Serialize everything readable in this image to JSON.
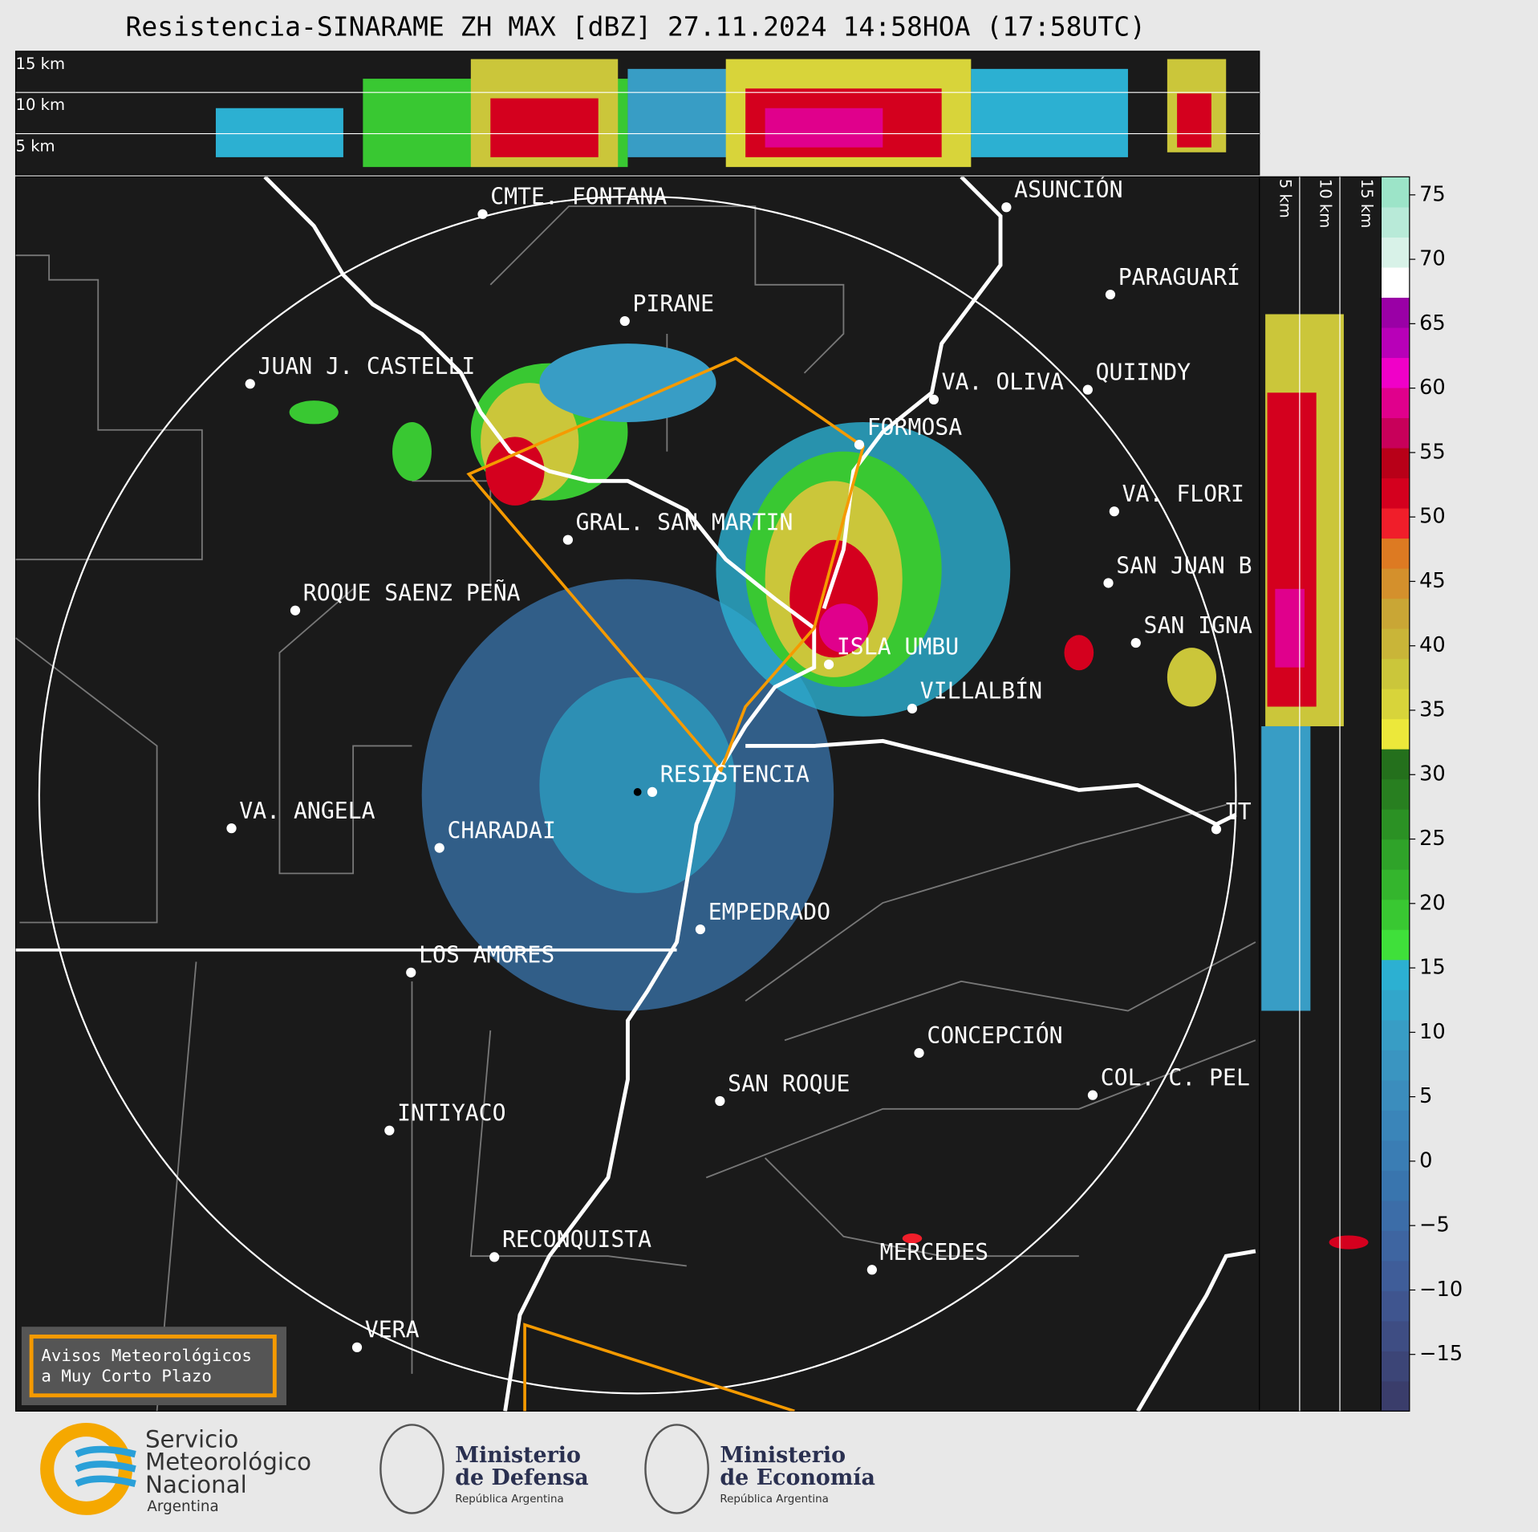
{
  "header": {
    "title": "Resistencia-SINARAME ZH MAX [dBZ] 27.11.2024 14:58HOA (17:58UTC)"
  },
  "top_panel": {
    "height_labels": [
      "15 km",
      "10 km",
      "5 km"
    ]
  },
  "side_panel": {
    "height_labels": [
      "5 km",
      "10 km",
      "15 km"
    ]
  },
  "map": {
    "places": [
      "CMTE. FONTANA",
      "PIRANE",
      "JUAN J. CASTELLI",
      "VA. OLIVA",
      "QUIINDY",
      "ASUNCIÓN",
      "PARAGUARÍ",
      "FORMOSA",
      "VA. FLORI",
      "GRAL. SAN MARTIN",
      "SAN JUAN B",
      "ROQUE SAENZ PEÑA",
      "SAN IGNA",
      "ISLA UMBU",
      "VILLALBÍN",
      "RESISTENCIA",
      "VA. ANGELA",
      "CHARADAI",
      "IT",
      "EMPEDRADO",
      "LOS AMORES",
      "CONCEPCIÓN",
      "COL. C. PEL",
      "SAN ROQUE",
      "INTIYACO",
      "RECONQUISTA",
      "MERCEDES",
      "VERA"
    ]
  },
  "colorbar": {
    "lim": [
      -19.4,
      76.4
    ],
    "ticks": [
      75,
      70,
      65,
      60,
      55,
      50,
      45,
      40,
      35,
      30,
      25,
      20,
      15,
      10,
      5,
      0,
      {
        "value": -5,
        "label": "−5"
      },
      {
        "value": -10,
        "label": "−10"
      },
      {
        "value": -15,
        "label": "−15"
      }
    ],
    "colors": [
      "#3a3d6b",
      "#3c4577",
      "#3e4d83",
      "#3f558f",
      "#3f5d99",
      "#3e65a1",
      "#3c6da8",
      "#3975ae",
      "#3a7db4",
      "#3a85b9",
      "#3b8dbd",
      "#3a95c1",
      "#389dc5",
      "#32a6cb",
      "#2cb0d2",
      "#3fe03a",
      "#39c832",
      "#34b52d",
      "#2fa329",
      "#2b9124",
      "#287f20",
      "#24701c",
      "#ece83a",
      "#d8d43a",
      "#cbc63a",
      "#c9b538",
      "#c9a635",
      "#d4902c",
      "#dd7a22",
      "#f01e2a",
      "#d4001e",
      "#b80018",
      "#c8005a",
      "#e0008c",
      "#f000c8",
      "#b800b8",
      "#9a00a6",
      "#ffffff",
      "#d8f2e8",
      "#b8ead8",
      "#9ce4c8"
    ]
  },
  "warning_box": {
    "lines": [
      "Avisos Meteorológicos",
      "a Muy Corto Plazo"
    ]
  },
  "footer": {
    "smn": [
      "Servicio",
      "Meteorológico",
      "Nacional",
      "Argentina"
    ],
    "defensa": [
      "Ministerio",
      "de Defensa",
      "República Argentina"
    ],
    "economia": [
      "Ministerio",
      "de Economía",
      "República Argentina"
    ]
  }
}
